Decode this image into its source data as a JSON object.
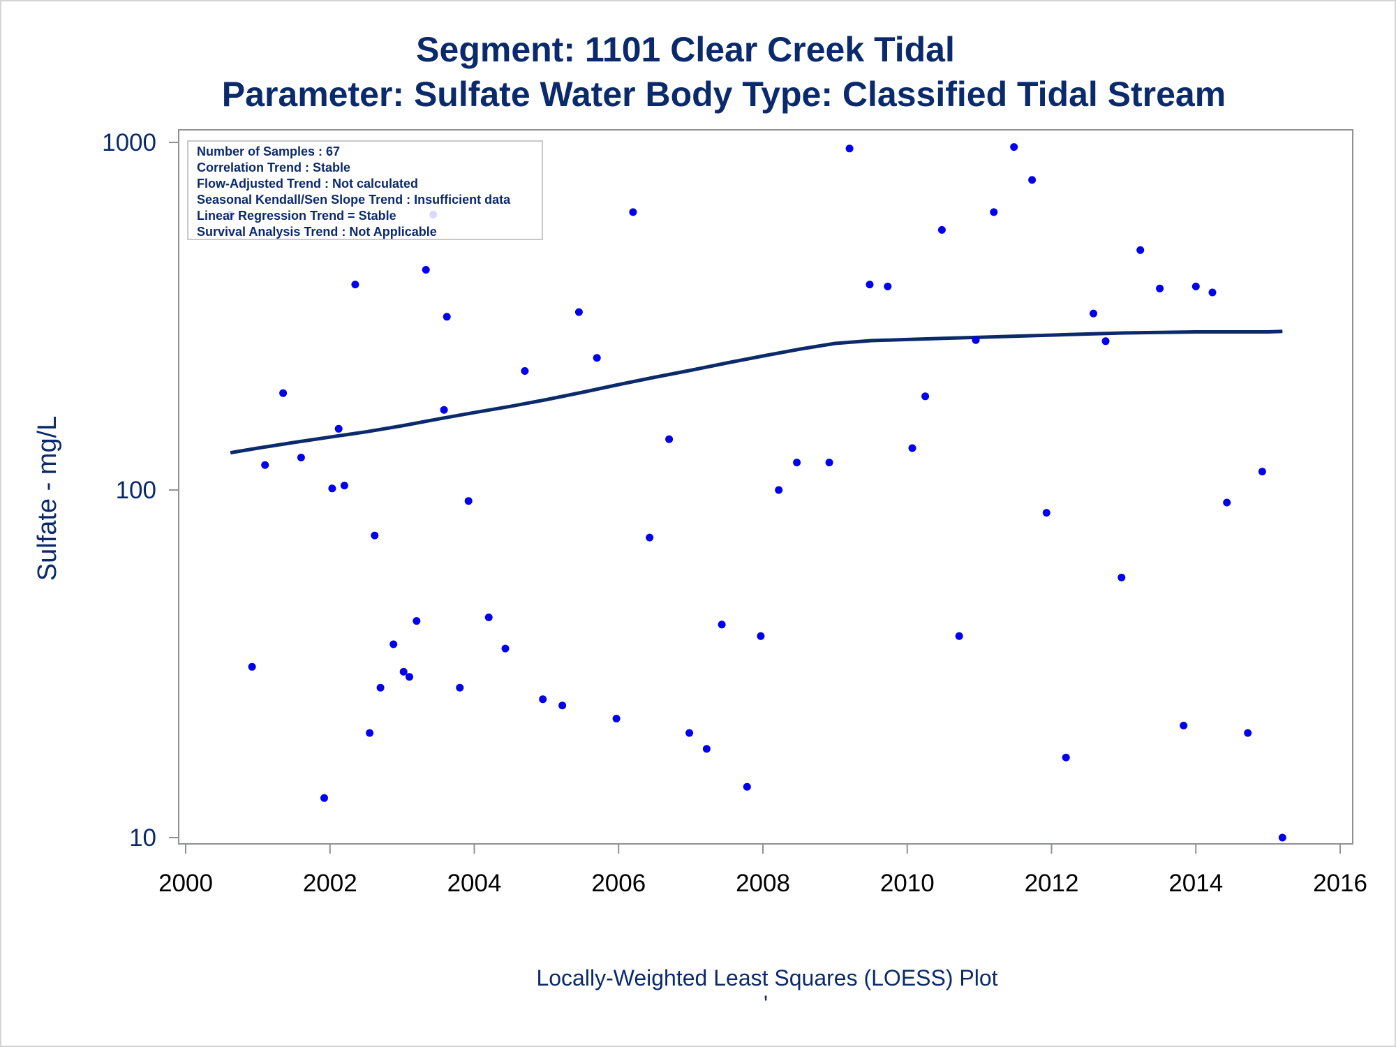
{
  "chart_data": {
    "type": "scatter",
    "title": "Segment: 1101  Clear Creek Tidal",
    "subtitle": "Parameter: Sulfate   Water Body Type: Classified Tidal Stream",
    "ylabel": "Sulfate - mg/L",
    "xlabel": "",
    "footnote": "Locally-Weighted Least Squares (LOESS) Plot",
    "footnote_mark": "'",
    "y_scale": "log",
    "xlim": [
      2000,
      2016
    ],
    "ylim": [
      10,
      1000
    ],
    "x_ticks": [
      2000,
      2002,
      2004,
      2006,
      2008,
      2010,
      2012,
      2014,
      2016
    ],
    "y_ticks": [
      10,
      100,
      1000
    ],
    "legend_placement": "top-left",
    "stats": [
      "Number of Samples : 67",
      "Correlation Trend : Stable",
      "Flow-Adjusted Trend : Not calculated",
      "Seasonal Kendall/Sen Slope Trend : Insufficient data",
      "Linear Regression Trend = Stable",
      "Survival Analysis Trend : Not Applicable"
    ],
    "points": [
      [
        2000.62,
        620
      ],
      [
        2000.92,
        31
      ],
      [
        2001.1,
        118
      ],
      [
        2001.35,
        190
      ],
      [
        2001.6,
        124
      ],
      [
        2001.92,
        13
      ],
      [
        2002.03,
        101
      ],
      [
        2002.12,
        150
      ],
      [
        2002.2,
        103
      ],
      [
        2002.35,
        390
      ],
      [
        2002.55,
        20
      ],
      [
        2002.62,
        74
      ],
      [
        2002.7,
        27
      ],
      [
        2002.88,
        36
      ],
      [
        2003.02,
        30
      ],
      [
        2003.1,
        29
      ],
      [
        2003.2,
        42
      ],
      [
        2003.33,
        430
      ],
      [
        2003.43,
        620
      ],
      [
        2003.58,
        170
      ],
      [
        2003.62,
        315
      ],
      [
        2003.8,
        27
      ],
      [
        2003.92,
        93
      ],
      [
        2004.2,
        43
      ],
      [
        2004.43,
        35
      ],
      [
        2004.7,
        220
      ],
      [
        2004.95,
        25
      ],
      [
        2005.22,
        24
      ],
      [
        2005.45,
        325
      ],
      [
        2005.7,
        240
      ],
      [
        2005.97,
        22
      ],
      [
        2006.2,
        630
      ],
      [
        2006.43,
        73
      ],
      [
        2006.7,
        140
      ],
      [
        2006.98,
        20
      ],
      [
        2007.22,
        18
      ],
      [
        2007.43,
        41
      ],
      [
        2007.78,
        14
      ],
      [
        2007.97,
        38
      ],
      [
        2008.22,
        100
      ],
      [
        2008.47,
        120
      ],
      [
        2008.92,
        120
      ],
      [
        2009.2,
        960
      ],
      [
        2009.48,
        390
      ],
      [
        2009.73,
        385
      ],
      [
        2010.07,
        132
      ],
      [
        2010.25,
        186
      ],
      [
        2010.48,
        560
      ],
      [
        2010.72,
        38
      ],
      [
        2010.95,
        270
      ],
      [
        2011.2,
        630
      ],
      [
        2011.48,
        970
      ],
      [
        2011.73,
        780
      ],
      [
        2011.93,
        86
      ],
      [
        2012.2,
        17
      ],
      [
        2012.58,
        322
      ],
      [
        2012.75,
        268
      ],
      [
        2012.97,
        56
      ],
      [
        2013.23,
        490
      ],
      [
        2013.5,
        380
      ],
      [
        2013.83,
        21
      ],
      [
        2014.0,
        385
      ],
      [
        2014.23,
        370
      ],
      [
        2014.43,
        92
      ],
      [
        2014.72,
        20
      ],
      [
        2014.92,
        113
      ],
      [
        2015.2,
        10
      ]
    ],
    "loess": [
      [
        2000.62,
        128
      ],
      [
        2001.0,
        132
      ],
      [
        2001.5,
        137
      ],
      [
        2002.0,
        142
      ],
      [
        2002.5,
        147
      ],
      [
        2003.0,
        153
      ],
      [
        2003.5,
        160
      ],
      [
        2004.0,
        167
      ],
      [
        2004.5,
        174
      ],
      [
        2005.0,
        182
      ],
      [
        2005.5,
        191
      ],
      [
        2006.0,
        201
      ],
      [
        2006.5,
        211
      ],
      [
        2007.0,
        221
      ],
      [
        2007.5,
        232
      ],
      [
        2008.0,
        243
      ],
      [
        2008.5,
        254
      ],
      [
        2009.0,
        264
      ],
      [
        2009.5,
        269
      ],
      [
        2010.0,
        271
      ],
      [
        2010.5,
        273
      ],
      [
        2011.0,
        275
      ],
      [
        2011.5,
        277
      ],
      [
        2012.0,
        279
      ],
      [
        2012.5,
        281
      ],
      [
        2013.0,
        283
      ],
      [
        2013.5,
        284
      ],
      [
        2014.0,
        285
      ],
      [
        2014.5,
        285
      ],
      [
        2015.0,
        285
      ],
      [
        2015.2,
        286
      ]
    ],
    "point_color": "#0000ee",
    "line_color": "#0b2a6b"
  }
}
